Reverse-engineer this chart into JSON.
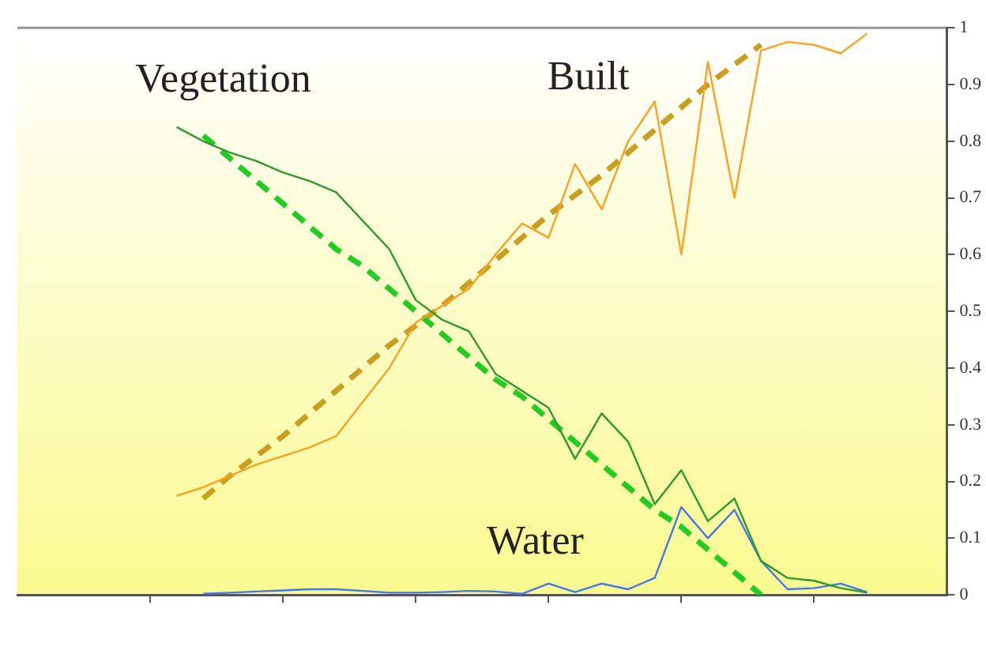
{
  "chart_data": {
    "type": "line",
    "categories": [
      null,
      null,
      null,
      null,
      null,
      null,
      null,
      null,
      null,
      null,
      null,
      null,
      null,
      null,
      null,
      null,
      null,
      null,
      null,
      null,
      null,
      null,
      null,
      null,
      null,
      null,
      null,
      null,
      null,
      null,
      null,
      null,
      null,
      null,
      null,
      null
    ],
    "ylim": [
      0,
      1
    ],
    "yticks": [
      0,
      0.1,
      0.2,
      0.3,
      0.4,
      0.5,
      0.6,
      0.7,
      0.8,
      0.9,
      1
    ],
    "tick_labels": "y",
    "grid": false,
    "legend": false,
    "marker": "none",
    "series": [
      {
        "name": "Vegetation",
        "color": "#2e9a2e",
        "line_style": "solid",
        "values": [
          null,
          null,
          null,
          null,
          null,
          null,
          0.825,
          0.8,
          0.78,
          0.765,
          0.745,
          0.73,
          0.71,
          0.66,
          0.61,
          0.52,
          0.485,
          0.465,
          0.39,
          0.36,
          0.33,
          0.24,
          0.32,
          0.27,
          0.16,
          0.22,
          0.13,
          0.17,
          0.06,
          0.03,
          0.025,
          0.012,
          0.004,
          null,
          null,
          null
        ]
      },
      {
        "name": "Built",
        "color": "#ffa020",
        "line_style": "solid",
        "values": [
          null,
          null,
          null,
          null,
          null,
          null,
          0.175,
          0.19,
          0.21,
          0.23,
          0.245,
          0.26,
          0.28,
          0.34,
          0.4,
          0.48,
          0.51,
          0.54,
          0.6,
          0.655,
          0.63,
          0.76,
          0.68,
          0.8,
          0.87,
          0.6,
          0.94,
          0.7,
          0.96,
          0.975,
          0.97,
          0.955,
          0.99,
          null,
          null,
          null
        ]
      },
      {
        "name": "Water",
        "color": "#4477ee",
        "line_style": "solid",
        "values": [
          null,
          null,
          null,
          null,
          null,
          null,
          null,
          0.002,
          0.004,
          0.006,
          0.008,
          0.01,
          0.01,
          0.007,
          0.004,
          0.004,
          0.005,
          0.007,
          0.006,
          0.002,
          0.02,
          0.005,
          0.02,
          0.01,
          0.03,
          0.155,
          0.1,
          0.15,
          0.06,
          0.01,
          0.012,
          0.02,
          0.005,
          null,
          null,
          null
        ]
      },
      {
        "type": "line",
        "color": "#22cc22",
        "line_style": "dashed",
        "values": [
          null,
          null,
          null,
          null,
          null,
          null,
          null,
          0.81,
          0.77,
          0.73,
          0.69,
          0.65,
          0.61,
          0.58,
          0.54,
          0.5,
          0.46,
          0.42,
          0.38,
          0.35,
          0.31,
          0.27,
          0.23,
          0.19,
          0.15,
          0.12,
          0.08,
          0.04,
          0,
          null,
          null,
          null,
          null,
          null,
          null,
          null
        ]
      },
      {
        "type": "line",
        "color": "#c8a020",
        "line_style": "dashed",
        "values": [
          null,
          null,
          null,
          null,
          null,
          null,
          null,
          0.17,
          0.21,
          0.245,
          0.28,
          0.32,
          0.36,
          0.4,
          0.44,
          0.475,
          0.51,
          0.55,
          0.59,
          0.63,
          0.67,
          0.705,
          0.74,
          0.78,
          0.82,
          0.86,
          0.9,
          0.935,
          0.97,
          null,
          null,
          null,
          null,
          null,
          null,
          null
        ]
      }
    ]
  }
}
